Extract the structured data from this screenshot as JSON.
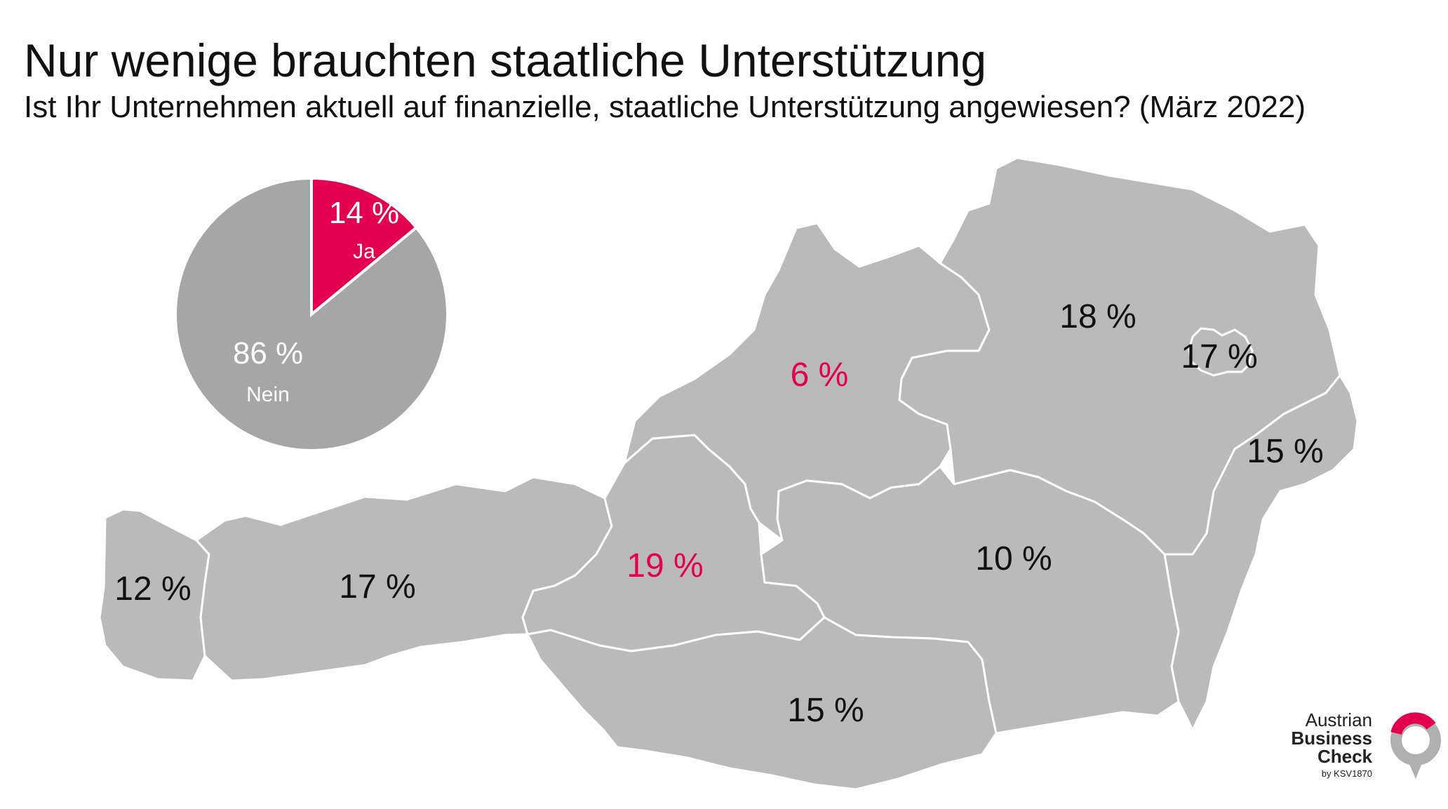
{
  "header": {
    "title": "Nur wenige brauchten staatliche Unterstützung",
    "subtitle": "Ist Ihr Unternehmen aktuell auf finanzielle, staatliche Unterstützung angewiesen? (März 2022)"
  },
  "chart_data": [
    {
      "type": "pie",
      "slices": [
        {
          "label": "Ja",
          "value": 14,
          "value_text": "14 %",
          "color": "#e4004f",
          "highlight": true
        },
        {
          "label": "Nein",
          "value": 86,
          "value_text": "86 %",
          "color": "#a6a6a6",
          "highlight": false
        }
      ]
    },
    {
      "type": "map",
      "regions": [
        {
          "region": "Vorarlberg",
          "value": 12,
          "label": "12 %",
          "highlight": false
        },
        {
          "region": "Tirol",
          "value": 17,
          "label": "17 %",
          "highlight": false
        },
        {
          "region": "Salzburg",
          "value": 19,
          "label": "19 %",
          "highlight": true
        },
        {
          "region": "Oberösterreich",
          "value": 6,
          "label": "6 %",
          "highlight": true
        },
        {
          "region": "Niederösterreich",
          "value": 18,
          "label": "18 %",
          "highlight": false
        },
        {
          "region": "Wien",
          "value": 17,
          "label": "17 %",
          "highlight": false
        },
        {
          "region": "Burgenland",
          "value": 15,
          "label": "15 %",
          "highlight": false
        },
        {
          "region": "Steiermark",
          "value": 10,
          "label": "10 %",
          "highlight": false
        },
        {
          "region": "Kärnten",
          "value": 15,
          "label": "15 %",
          "highlight": false
        }
      ]
    }
  ],
  "colors": {
    "highlight": "#e4004f",
    "region_fill": "#bababa",
    "pie_other": "#a6a6a6",
    "border": "#ffffff",
    "text": "#111111"
  },
  "logo": {
    "line1": "Austrian",
    "line2": "Business",
    "line3": "Check",
    "line4": "by KSV1870",
    "icon": "speech-bubble-ring-icon"
  }
}
